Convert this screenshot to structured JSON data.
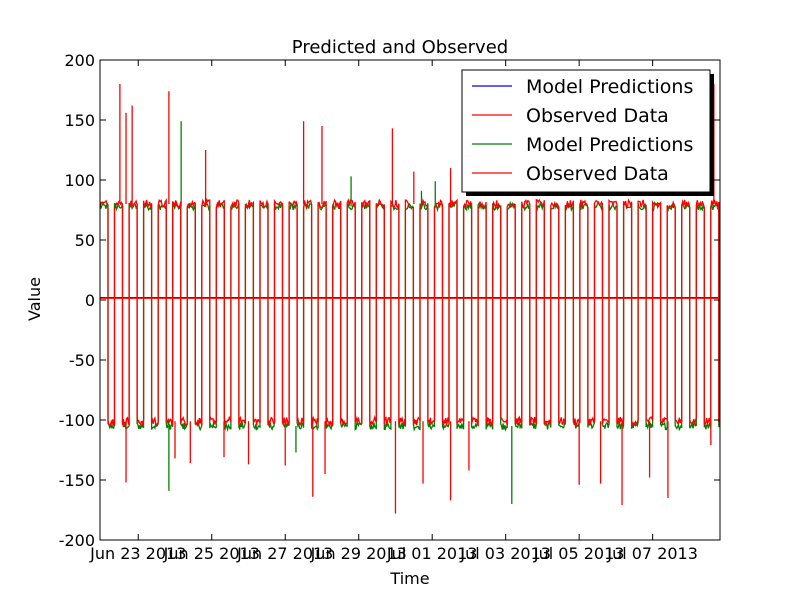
{
  "chart_data": {
    "type": "line",
    "title": "Predicted and Observed",
    "xlabel": "Time",
    "ylabel": "Value",
    "ylim": [
      -200,
      200
    ],
    "xlim": [
      "2013-06-21 23:00",
      "2013-07-08 20:00"
    ],
    "yticks": [
      -200,
      -150,
      -100,
      -50,
      0,
      50,
      100,
      150,
      200
    ],
    "xticks": [
      {
        "label": "Jun 23 2013",
        "date": "2013-06-23 00:00"
      },
      {
        "label": "Jun 25 2013",
        "date": "2013-06-25 00:00"
      },
      {
        "label": "Jun 27 2013",
        "date": "2013-06-27 00:00"
      },
      {
        "label": "Jun 29 2013",
        "date": "2013-06-29 00:00"
      },
      {
        "label": "Jul 01 2013",
        "date": "2013-07-01 00:00"
      },
      {
        "label": "Jul 03 2013",
        "date": "2013-07-03 00:00"
      },
      {
        "label": "Jul 05 2013",
        "date": "2013-07-05 00:00"
      },
      {
        "label": "Jul 07 2013",
        "date": "2013-07-07 00:00"
      }
    ],
    "grid": false,
    "legend": {
      "position": "top-right"
    },
    "series": [
      {
        "name": "Model Predictions",
        "color": "#0000ff",
        "description_values": "flat near 2",
        "x": [
          "2013-06-21 23:00",
          "2013-06-25 00:00",
          "2013-06-29 00:00",
          "2013-07-03 00:00",
          "2013-07-08 20:00"
        ],
        "y": [
          2,
          2,
          2,
          2,
          2
        ]
      },
      {
        "name": "Observed Data",
        "color": "#ff0000",
        "x": [
          "2013-06-21 23:00",
          "2013-06-25 00:00",
          "2013-06-29 00:00",
          "2013-07-03 00:00",
          "2013-07-08 20:00"
        ],
        "y": [
          1.5,
          1.5,
          1.5,
          1.5,
          1.5
        ]
      },
      {
        "name": "Model Predictions",
        "color": "#008000",
        "high_level": 78,
        "low_level": -105,
        "spikes": [
          {
            "date": "2013-06-21 23:10",
            "y": 82
          },
          {
            "date": "2013-06-24 04:00",
            "y": 149
          },
          {
            "date": "2013-06-23 20:00",
            "y": -159
          },
          {
            "date": "2013-06-27 07:00",
            "y": -127
          },
          {
            "date": "2013-06-28 19:00",
            "y": 103
          },
          {
            "date": "2013-06-30 17:00",
            "y": 91
          },
          {
            "date": "2013-07-01 02:00",
            "y": 99
          },
          {
            "date": "2013-07-03 04:00",
            "y": -170
          }
        ]
      },
      {
        "name": "Observed Data",
        "color": "#ff0000",
        "high_level": 80,
        "low_level": -101,
        "spikes": [
          {
            "date": "2013-06-22 12:00",
            "y": 180
          },
          {
            "date": "2013-06-22 16:00",
            "y": 156
          },
          {
            "date": "2013-06-22 20:00",
            "y": 162
          },
          {
            "date": "2013-06-23 20:00",
            "y": 174
          },
          {
            "date": "2013-06-24 20:00",
            "y": 125
          },
          {
            "date": "2013-06-27 12:00",
            "y": 149
          },
          {
            "date": "2013-06-28 00:00",
            "y": 145
          },
          {
            "date": "2013-06-29 22:00",
            "y": 143
          },
          {
            "date": "2013-06-30 12:00",
            "y": 107
          },
          {
            "date": "2013-07-01 12:00",
            "y": 110
          },
          {
            "date": "2013-07-08 16:00",
            "y": 180
          },
          {
            "date": "2013-06-22 16:00",
            "y": -152
          },
          {
            "date": "2013-06-24 00:00",
            "y": -132
          },
          {
            "date": "2013-06-24 10:00",
            "y": -136
          },
          {
            "date": "2013-06-25 08:00",
            "y": -131
          },
          {
            "date": "2013-06-26 00:00",
            "y": -137
          },
          {
            "date": "2013-06-27 00:00",
            "y": -138
          },
          {
            "date": "2013-06-27 18:00",
            "y": -164
          },
          {
            "date": "2013-06-28 02:00",
            "y": -145
          },
          {
            "date": "2013-06-30 00:00",
            "y": -178
          },
          {
            "date": "2013-06-30 18:00",
            "y": -153
          },
          {
            "date": "2013-07-01 12:00",
            "y": -167
          },
          {
            "date": "2013-07-02 00:00",
            "y": -142
          },
          {
            "date": "2013-07-05 00:00",
            "y": -154
          },
          {
            "date": "2013-07-05 14:00",
            "y": -153
          },
          {
            "date": "2013-07-06 04:00",
            "y": -171
          },
          {
            "date": "2013-07-06 22:00",
            "y": -148
          },
          {
            "date": "2013-07-07 10:00",
            "y": -165
          },
          {
            "date": "2013-07-08 14:00",
            "y": -121
          }
        ]
      }
    ]
  }
}
